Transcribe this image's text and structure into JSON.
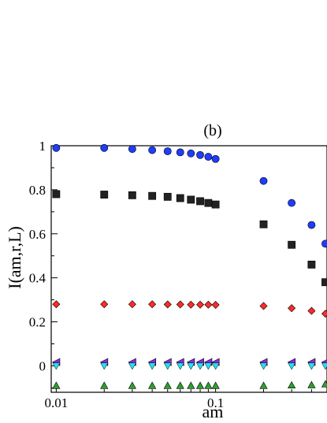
{
  "chart_data": {
    "type": "scatter",
    "title": "(b)",
    "xlabel": "am",
    "ylabel": "I(am,r,L)",
    "xscale": "log",
    "xlim": [
      0.0093,
      0.5
    ],
    "ylim": [
      -0.12,
      1.0
    ],
    "legend": "none",
    "grid": false,
    "x_ticks": [
      {
        "value": 0.01,
        "label": "0.01"
      },
      {
        "value": 0.1,
        "label": "0.1"
      }
    ],
    "y_ticks": [
      {
        "value": 0,
        "label": "0"
      },
      {
        "value": 0.2,
        "label": "0.2"
      },
      {
        "value": 0.4,
        "label": "0.4"
      },
      {
        "value": 0.6,
        "label": "0.6"
      },
      {
        "value": 0.8,
        "label": "0.8"
      },
      {
        "value": 1.0,
        "label": "1"
      }
    ],
    "series": [
      {
        "marker": "circle",
        "color": "#1f3cff",
        "x": [
          0.01,
          0.02,
          0.03,
          0.04,
          0.05,
          0.06,
          0.07,
          0.08,
          0.09,
          0.1,
          0.2,
          0.3,
          0.4,
          0.5
        ],
        "y": [
          0.99,
          0.99,
          0.985,
          0.98,
          0.975,
          0.97,
          0.965,
          0.958,
          0.95,
          0.94,
          0.84,
          0.74,
          0.64,
          0.555
        ]
      },
      {
        "marker": "square",
        "color": "#222222",
        "x": [
          0.01,
          0.02,
          0.03,
          0.04,
          0.05,
          0.06,
          0.07,
          0.08,
          0.09,
          0.1,
          0.2,
          0.3,
          0.4,
          0.5
        ],
        "y": [
          0.78,
          0.778,
          0.775,
          0.772,
          0.768,
          0.762,
          0.755,
          0.748,
          0.74,
          0.733,
          0.643,
          0.55,
          0.46,
          0.38
        ]
      },
      {
        "marker": "diamond",
        "color": "#ff2a2a",
        "x": [
          0.01,
          0.02,
          0.03,
          0.04,
          0.05,
          0.06,
          0.07,
          0.08,
          0.09,
          0.1,
          0.2,
          0.3,
          0.4,
          0.5
        ],
        "y": [
          0.28,
          0.28,
          0.28,
          0.28,
          0.279,
          0.279,
          0.278,
          0.278,
          0.278,
          0.277,
          0.272,
          0.262,
          0.25,
          0.237
        ]
      },
      {
        "marker": "triangle-left",
        "color": "#8a2be2",
        "x": [
          0.01,
          0.02,
          0.03,
          0.04,
          0.05,
          0.06,
          0.07,
          0.08,
          0.09,
          0.1,
          0.2,
          0.3,
          0.4,
          0.5
        ],
        "y": [
          0.017,
          0.017,
          0.017,
          0.017,
          0.017,
          0.017,
          0.017,
          0.017,
          0.017,
          0.017,
          0.017,
          0.017,
          0.017,
          0.017
        ]
      },
      {
        "marker": "triangle-down",
        "color": "#22e0f0",
        "x": [
          0.01,
          0.02,
          0.03,
          0.04,
          0.05,
          0.06,
          0.07,
          0.08,
          0.09,
          0.1,
          0.2,
          0.3,
          0.4,
          0.5
        ],
        "y": [
          0.0,
          0.0,
          0.0,
          0.0,
          0.0,
          0.0,
          0.0,
          0.0,
          0.0,
          0.0,
          0.0,
          0.0,
          0.0,
          0.0
        ]
      },
      {
        "marker": "triangle-up",
        "color": "#2ca02c",
        "x": [
          0.01,
          0.02,
          0.03,
          0.04,
          0.05,
          0.06,
          0.07,
          0.08,
          0.09,
          0.1,
          0.2,
          0.3,
          0.4,
          0.5
        ],
        "y": [
          -0.09,
          -0.09,
          -0.09,
          -0.09,
          -0.09,
          -0.09,
          -0.09,
          -0.09,
          -0.09,
          -0.09,
          -0.09,
          -0.088,
          -0.087,
          -0.083
        ]
      }
    ]
  }
}
